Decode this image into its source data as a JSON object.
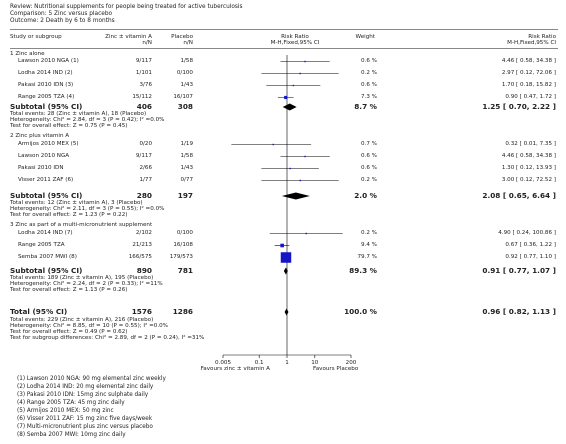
{
  "header": {
    "review": "Review:  Nutritional supplements for people being treated for active tuberculosis",
    "comparison": "Comparison:  5 Zinc versus placebo",
    "outcome": "Outcome:  2 Death by 6 to 8 months"
  },
  "columns": {
    "study": "Study or subgroup",
    "zinc": "Zinc ± vitamin A",
    "zinc_sub": "n/N",
    "placebo": "Placebo",
    "placebo_sub": "n/N",
    "rr": "Risk Ratio",
    "rr_sub": "M-H,Fixed,95% CI",
    "weight": "Weight",
    "rr2": "Risk Ratio",
    "rr2_sub": "M-H,Fixed,95% CI"
  },
  "groups": [
    {
      "title": "1 Zinc alone",
      "subtotal": {
        "label": "Subtotal (95% CI)",
        "zinc": "406",
        "placebo": "308",
        "weight": "8.7 %",
        "ci": "1.25 [ 0.70, 2.22 ]"
      },
      "notes": [
        "Total events: 28 (Zinc ± vitamin A), 18 (Placebo)",
        "Heterogeneity: Chi² = 2.84, df = 3 (P = 0.42); I² =0.0%",
        "Test for overall effect: Z = 0.75 (P = 0.45)"
      ]
    },
    {
      "title": "2 Zinc plus vitamin A",
      "subtotal": {
        "label": "Subtotal (95% CI)",
        "zinc": "280",
        "placebo": "197",
        "weight": "2.0 %",
        "ci": "2.08 [ 0.65, 6.64 ]"
      },
      "notes": [
        "Total events: 12 (Zinc ± vitamin A), 3 (Placebo)",
        "Heterogeneity: Chi² = 2.11, df = 3 (P = 0.55); I² =0.0%",
        "Test for overall effect: Z = 1.23 (P = 0.22)"
      ]
    },
    {
      "title": "3 Zinc as part of a multi-micronutrient supplement",
      "subtotal": {
        "label": "Subtotal (95% CI)",
        "zinc": "890",
        "placebo": "781",
        "weight": "89.3 %",
        "ci": "0.91 [ 0.77, 1.07 ]"
      },
      "notes": [
        "Total events: 189 (Zinc ± vitamin A), 195 (Placebo)",
        "Heterogeneity: Chi² = 2.24, df = 2 (P = 0.33); I² =11%",
        "Test for overall effect: Z = 1.13 (P = 0.26)"
      ]
    }
  ],
  "total": {
    "label": "Total (95% CI)",
    "zinc": "1576",
    "placebo": "1286",
    "weight": "100.0 %",
    "ci": "0.96 [ 0.82, 1.13 ]",
    "notes": [
      "Total events: 229 (Zinc ± vitamin A), 216 (Placebo)",
      "Heterogeneity: Chi² = 8.85, df = 10 (P = 0.55); I² =0.0%",
      "Test for overall effect: Z = 0.49 (P = 0.62)",
      "Test for subgroup differences: Chi² = 2.89, df = 2 (P = 0.24), I² =31%"
    ]
  },
  "axis": {
    "favours_left": "Favours zinc ± vitamin A",
    "favours_right": "Favours Placebo"
  },
  "footnotes": [
    "(1) Lawson 2010 NGA: 90 mg elemental zinc weekly",
    "(2) Lodha 2014 IND: 20 mg elemental zinc daily",
    "(3) Pakasi 2010 IDN: 15mg zinc sulphate daily",
    "(4) Range 2005 TZA: 45 mg zinc daily",
    "(5) Armijos 2010 MEX: 50 mg zinc",
    "(6) Visser 2011 ZAF: 15 mg zinc five days/week",
    "(7) Multi-micronutrient plus zinc versus placebo",
    "(8) Semba 2007 MWI: 10mg zinc daily"
  ],
  "chart_data": {
    "type": "forest",
    "scale": "log",
    "xlim": [
      0.005,
      200
    ],
    "ticks": [
      0.005,
      0.1,
      1,
      10,
      200
    ],
    "tick_labels": [
      "0.005",
      "0.1",
      "1",
      "10",
      "200"
    ],
    "null_line": 1,
    "studies": [
      {
        "group": 0,
        "name": "Lawson 2010 NGA (1)",
        "zinc": "9/117",
        "placebo": "1/58",
        "weight": 0.6,
        "weight_label": "0.6 %",
        "rr": 4.46,
        "lo": 0.58,
        "hi": 34.38,
        "ci": "4.46 [ 0.58, 34.38 ]"
      },
      {
        "group": 0,
        "name": "Lodha 2014 IND (2)",
        "zinc": "1/101",
        "placebo": "0/100",
        "weight": 0.2,
        "weight_label": "0.2 %",
        "rr": 2.97,
        "lo": 0.12,
        "hi": 72.06,
        "ci": "2.97 [ 0.12, 72.06 ]"
      },
      {
        "group": 0,
        "name": "Pakasi 2010 IDN (3)",
        "zinc": "3/76",
        "placebo": "1/43",
        "weight": 0.6,
        "weight_label": "0.6 %",
        "rr": 1.7,
        "lo": 0.18,
        "hi": 15.82,
        "ci": "1.70 [ 0.18, 15.82 ]"
      },
      {
        "group": 0,
        "name": "Range 2005 TZA (4)",
        "zinc": "15/112",
        "placebo": "16/107",
        "weight": 7.3,
        "weight_label": "7.3 %",
        "rr": 0.9,
        "lo": 0.47,
        "hi": 1.72,
        "ci": "0.90 [ 0.47, 1.72 ]"
      },
      {
        "group": 1,
        "name": "Armijos 2010 MEX (5)",
        "zinc": "0/20",
        "placebo": "1/19",
        "weight": 0.7,
        "weight_label": "0.7 %",
        "rr": 0.32,
        "lo": 0.01,
        "hi": 7.35,
        "ci": "0.32 [ 0.01, 7.35 ]"
      },
      {
        "group": 1,
        "name": "Lawson 2010 NGA",
        "zinc": "9/117",
        "placebo": "1/58",
        "weight": 0.6,
        "weight_label": "0.6 %",
        "rr": 4.46,
        "lo": 0.58,
        "hi": 34.38,
        "ci": "4.46 [ 0.58, 34.38 ]"
      },
      {
        "group": 1,
        "name": "Pakasi 2010 IDN",
        "zinc": "2/66",
        "placebo": "1/43",
        "weight": 0.6,
        "weight_label": "0.6 %",
        "rr": 1.3,
        "lo": 0.12,
        "hi": 13.93,
        "ci": "1.30 [ 0.12, 13.93 ]"
      },
      {
        "group": 1,
        "name": "Visser 2011 ZAF (6)",
        "zinc": "1/77",
        "placebo": "0/77",
        "weight": 0.2,
        "weight_label": "0.2 %",
        "rr": 3.0,
        "lo": 0.12,
        "hi": 72.52,
        "ci": "3.00 [ 0.12, 72.52 ]"
      },
      {
        "group": 2,
        "name": "Lodha 2014 IND (7)",
        "zinc": "2/102",
        "placebo": "0/100",
        "weight": 0.2,
        "weight_label": "0.2 %",
        "rr": 4.9,
        "lo": 0.24,
        "hi": 100.86,
        "ci": "4.90 [ 0.24, 100.86 ]"
      },
      {
        "group": 2,
        "name": "Range 2005 TZA",
        "zinc": "21/213",
        "placebo": "16/108",
        "weight": 9.4,
        "weight_label": "9.4 %",
        "rr": 0.67,
        "lo": 0.36,
        "hi": 1.22,
        "ci": "0.67 [ 0.36, 1.22 ]"
      },
      {
        "group": 2,
        "name": "Semba 2007 MWI (8)",
        "zinc": "166/575",
        "placebo": "179/573",
        "weight": 79.7,
        "weight_label": "79.7 %",
        "rr": 0.92,
        "lo": 0.77,
        "hi": 1.1,
        "ci": "0.92 [ 0.77, 1.10 ]"
      }
    ],
    "subtotals": [
      {
        "group": 0,
        "rr": 1.25,
        "lo": 0.7,
        "hi": 2.22
      },
      {
        "group": 1,
        "rr": 2.08,
        "lo": 0.65,
        "hi": 6.64
      },
      {
        "group": 2,
        "rr": 0.91,
        "lo": 0.77,
        "hi": 1.07
      }
    ],
    "overall": {
      "rr": 0.96,
      "lo": 0.82,
      "hi": 1.13
    },
    "colors": {
      "box": "#1515c8",
      "line": "#000000",
      "diamond": "#000000"
    }
  }
}
